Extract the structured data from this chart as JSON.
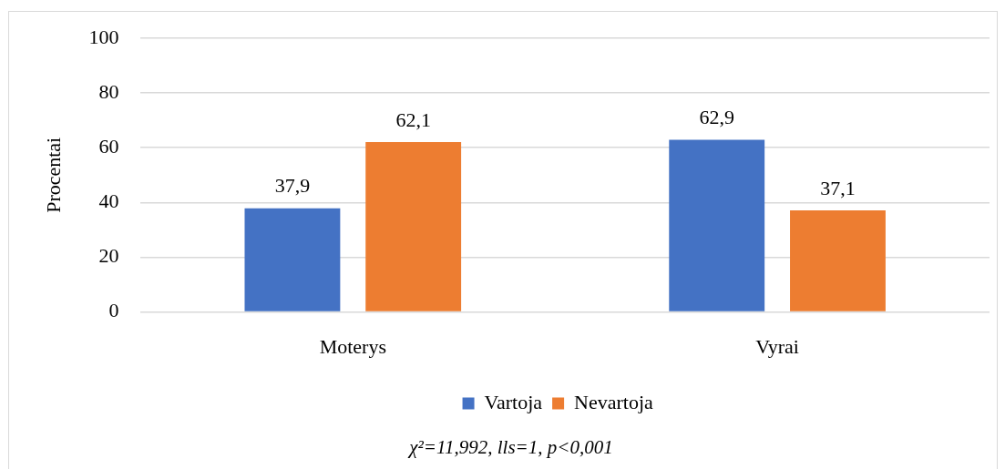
{
  "chart_data": {
    "type": "bar",
    "categories": [
      "Moterys",
      "Vyrai"
    ],
    "series": [
      {
        "name": "Vartoja",
        "color": "#4472c4",
        "values": [
          37.9,
          62.9
        ],
        "value_labels": [
          "37,9",
          "62,9"
        ]
      },
      {
        "name": "Nevartoja",
        "color": "#ed7d31",
        "values": [
          62.1,
          37.1
        ],
        "value_labels": [
          "62,1",
          "37,1"
        ]
      }
    ],
    "ylabel": "Procentai",
    "ylim": [
      0,
      100
    ],
    "yticks": [
      0,
      20,
      40,
      60,
      80,
      100
    ],
    "grid": "y",
    "legend": "bottom",
    "annotations": [
      "χ²=11,992, lls=1, p<0,001"
    ]
  }
}
